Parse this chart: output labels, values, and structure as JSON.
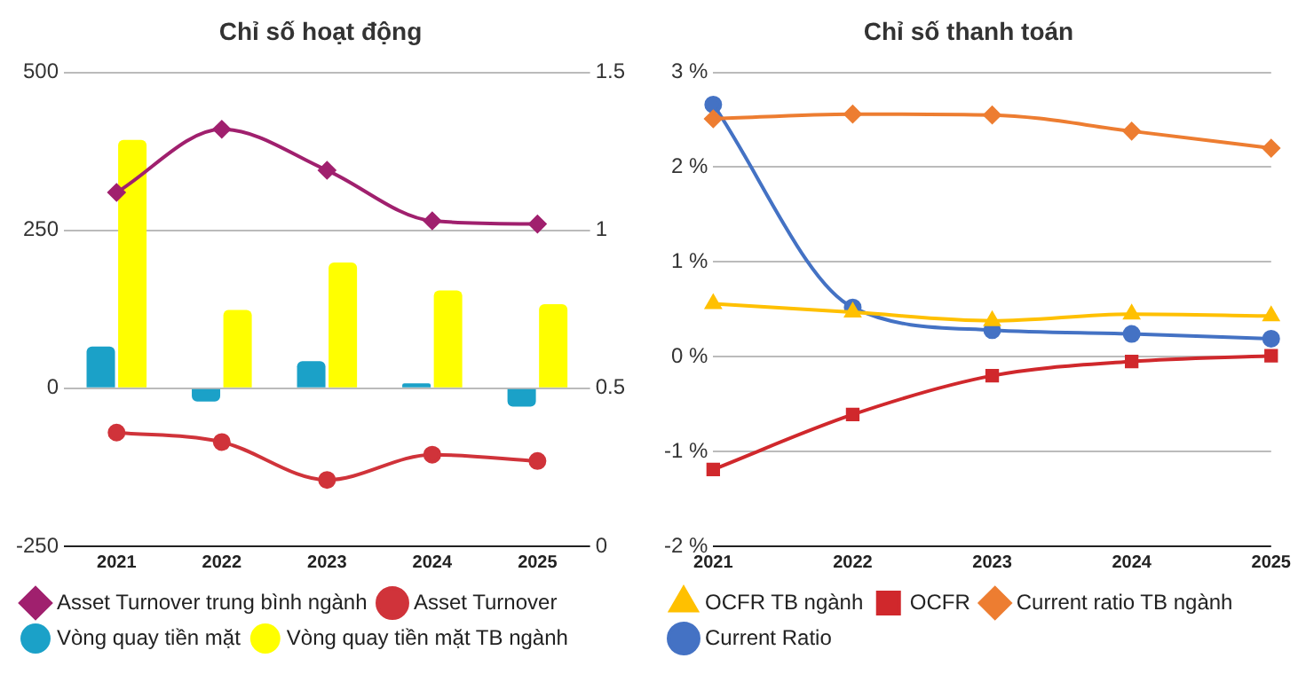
{
  "chart_data": [
    {
      "type": "bar",
      "title": "Chỉ số hoạt động",
      "categories": [
        "2021",
        "2022",
        "2023",
        "2024",
        "2025"
      ],
      "series": [
        {
          "name": "Vòng quay tiền mặt",
          "color": "#1ba1c8",
          "values": [
            66,
            -21,
            43,
            8,
            -29
          ]
        },
        {
          "name": "Vòng quay tiền mặt TB ngành",
          "color": "#ffff00",
          "values": [
            393,
            124,
            199,
            155,
            133
          ]
        },
        {
          "name": "Asset Turnover",
          "type": "line",
          "axis": "y2",
          "marker": "circle",
          "color": "#d0333a",
          "values": [
            0.36,
            0.33,
            0.21,
            0.29,
            0.27
          ]
        },
        {
          "name": "Asset Turnover trung bình ngành",
          "type": "line",
          "axis": "y2",
          "marker": "diamond",
          "color": "#a0206e",
          "values": [
            1.12,
            1.32,
            1.19,
            1.03,
            1.02
          ]
        }
      ],
      "ylim": [
        -250,
        500
      ],
      "yticks": [
        -250,
        0,
        250,
        500
      ],
      "y2lim": [
        0,
        1.5
      ],
      "y2ticks": [
        0,
        0.5,
        1,
        1.5
      ],
      "grid": "y",
      "legend": "bottom"
    },
    {
      "type": "line",
      "title": "Chỉ số thanh toán",
      "categories": [
        "2021",
        "2022",
        "2023",
        "2024",
        "2025"
      ],
      "series": [
        {
          "name": "Current Ratio",
          "marker": "circle",
          "color": "#4472c4",
          "values": [
            2.66,
            0.52,
            0.28,
            0.24,
            0.19
          ]
        },
        {
          "name": "Current ratio TB ngành",
          "marker": "diamond",
          "color": "#ed7d31",
          "values": [
            2.51,
            2.56,
            2.55,
            2.38,
            2.2
          ]
        },
        {
          "name": "OCFR",
          "marker": "square",
          "color": "#d0282c",
          "values": [
            -1.19,
            -0.61,
            -0.2,
            -0.05,
            0.01
          ]
        },
        {
          "name": "OCFR TB ngành",
          "marker": "triangle",
          "color": "#ffc000",
          "values": [
            0.56,
            0.47,
            0.38,
            0.45,
            0.43
          ]
        }
      ],
      "ylim": [
        -2,
        3
      ],
      "yticks": [
        {
          "value": -2,
          "label": "-2 %"
        },
        {
          "value": -1,
          "label": "-1 %"
        },
        {
          "value": 0,
          "label": "0 %"
        },
        {
          "value": 1,
          "label": "1 %"
        },
        {
          "value": 2,
          "label": "2 %"
        },
        {
          "value": 3,
          "label": "3 %"
        }
      ],
      "grid": "y",
      "legend": "bottom"
    }
  ]
}
